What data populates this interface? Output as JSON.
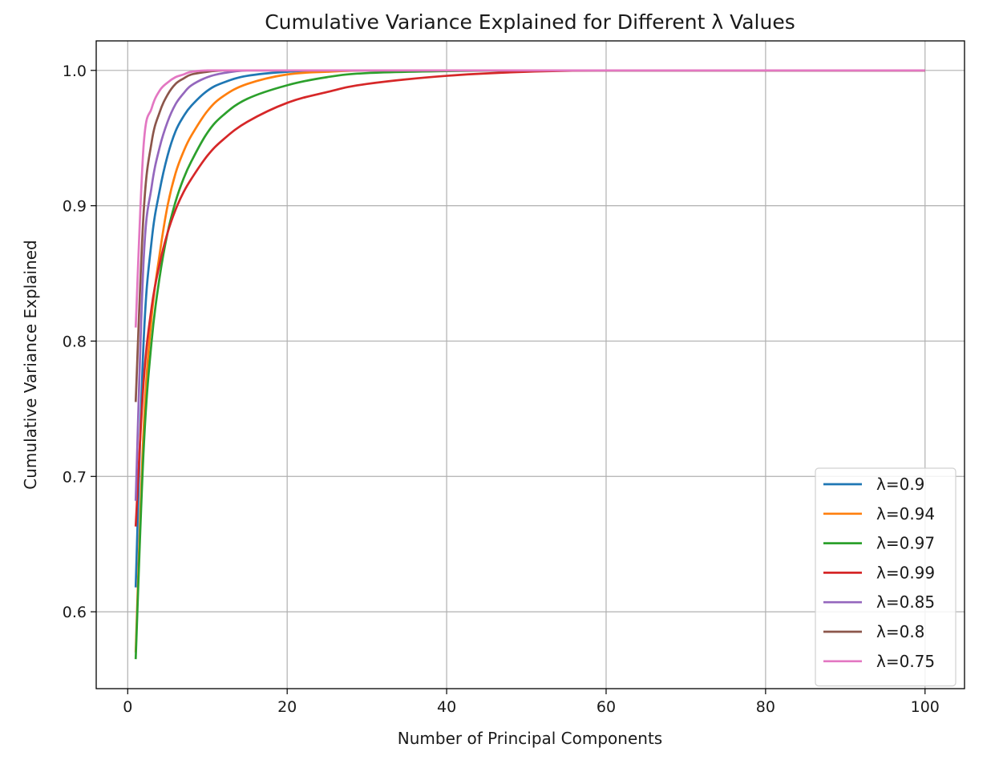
{
  "chart_data": {
    "type": "line",
    "title": "Cumulative Variance Explained for Different λ Values",
    "xlabel": "Number of Principal Components",
    "ylabel": "Cumulative Variance Explained",
    "xlim": [
      -3.95,
      104.95
    ],
    "ylim": [
      0.5432,
      1.0218
    ],
    "xticks": [
      0,
      20,
      40,
      60,
      80,
      100
    ],
    "xtick_labels": [
      "0",
      "20",
      "40",
      "60",
      "80",
      "100"
    ],
    "yticks": [
      0.6,
      0.7,
      0.8,
      0.9,
      1.0
    ],
    "ytick_labels": [
      "0.6",
      "0.7",
      "0.8",
      "0.9",
      "1.0"
    ],
    "grid": true,
    "legend_position": "lower-right",
    "x": [
      1,
      2,
      3,
      4,
      5,
      6,
      7,
      8,
      10,
      12,
      15,
      20,
      25,
      30,
      40,
      50,
      60,
      80,
      100
    ],
    "series": [
      {
        "name": "λ=0.9",
        "color": "#1f77b4",
        "values": [
          0.618,
          0.8,
          0.874,
          0.911,
          0.937,
          0.955,
          0.966,
          0.974,
          0.985,
          0.991,
          0.996,
          0.999,
          1.0,
          1.0,
          1.0,
          1.0,
          1.0,
          1.0,
          1.0
        ]
      },
      {
        "name": "λ=0.94",
        "color": "#ff7f0e",
        "values": [
          0.57,
          0.735,
          0.818,
          0.864,
          0.9,
          0.924,
          0.94,
          0.952,
          0.97,
          0.981,
          0.99,
          0.997,
          0.999,
          1.0,
          1.0,
          1.0,
          1.0,
          1.0,
          1.0
        ]
      },
      {
        "name": "λ=0.97",
        "color": "#2ca02c",
        "values": [
          0.565,
          0.72,
          0.8,
          0.847,
          0.88,
          0.903,
          0.92,
          0.933,
          0.954,
          0.967,
          0.979,
          0.989,
          0.995,
          0.998,
          0.9995,
          1.0,
          1.0,
          1.0,
          1.0
        ]
      },
      {
        "name": "λ=0.99",
        "color": "#d62728",
        "values": [
          0.663,
          0.77,
          0.825,
          0.857,
          0.88,
          0.897,
          0.91,
          0.92,
          0.937,
          0.949,
          0.962,
          0.976,
          0.984,
          0.99,
          0.996,
          0.999,
          1.0,
          1.0,
          1.0
        ]
      },
      {
        "name": "λ=0.85",
        "color": "#9467bd",
        "values": [
          0.682,
          0.86,
          0.914,
          0.943,
          0.962,
          0.975,
          0.983,
          0.989,
          0.995,
          0.998,
          1.0,
          1.0,
          1.0,
          1.0,
          1.0,
          1.0,
          1.0,
          1.0,
          1.0
        ]
      },
      {
        "name": "λ=0.8",
        "color": "#8c564b",
        "values": [
          0.755,
          0.895,
          0.947,
          0.969,
          0.982,
          0.99,
          0.994,
          0.997,
          0.999,
          1.0,
          1.0,
          1.0,
          1.0,
          1.0,
          1.0,
          1.0,
          1.0,
          1.0,
          1.0
        ]
      },
      {
        "name": "λ=0.75",
        "color": "#e377c2",
        "values": [
          0.81,
          0.945,
          0.972,
          0.985,
          0.991,
          0.995,
          0.997,
          0.999,
          1.0,
          1.0,
          1.0,
          1.0,
          1.0,
          1.0,
          1.0,
          1.0,
          1.0,
          1.0,
          1.0
        ]
      }
    ]
  }
}
